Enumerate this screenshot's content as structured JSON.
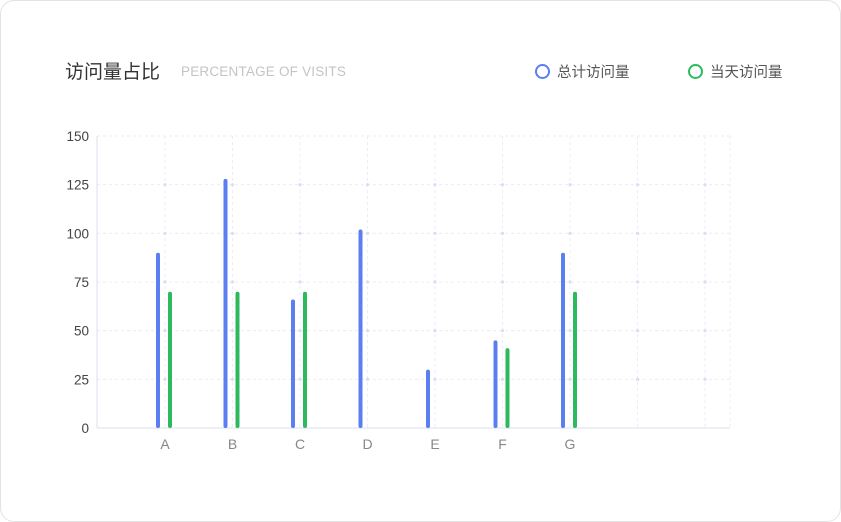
{
  "header": {
    "title": "访问量占比",
    "subtitle": "PERCENTAGE OF VISITS"
  },
  "legend": [
    {
      "label": "总计访问量",
      "color": "#5b7ef0"
    },
    {
      "label": "当天访问量",
      "color": "#2dba5e"
    }
  ],
  "chart_data": {
    "type": "bar",
    "categories": [
      "A",
      "B",
      "C",
      "D",
      "E",
      "F",
      "G",
      "",
      ""
    ],
    "series": [
      {
        "name": "总计访问量",
        "color": "#5b7ef0",
        "values": [
          90,
          128,
          66,
          102,
          30,
          45,
          90,
          null,
          null
        ]
      },
      {
        "name": "当天访问量",
        "color": "#2dba5e",
        "values": [
          70,
          70,
          70,
          null,
          null,
          41,
          70,
          null,
          null
        ]
      }
    ],
    "yticks": [
      0,
      25,
      50,
      75,
      100,
      125,
      150
    ],
    "ylim": [
      0,
      150
    ],
    "grid": true
  }
}
